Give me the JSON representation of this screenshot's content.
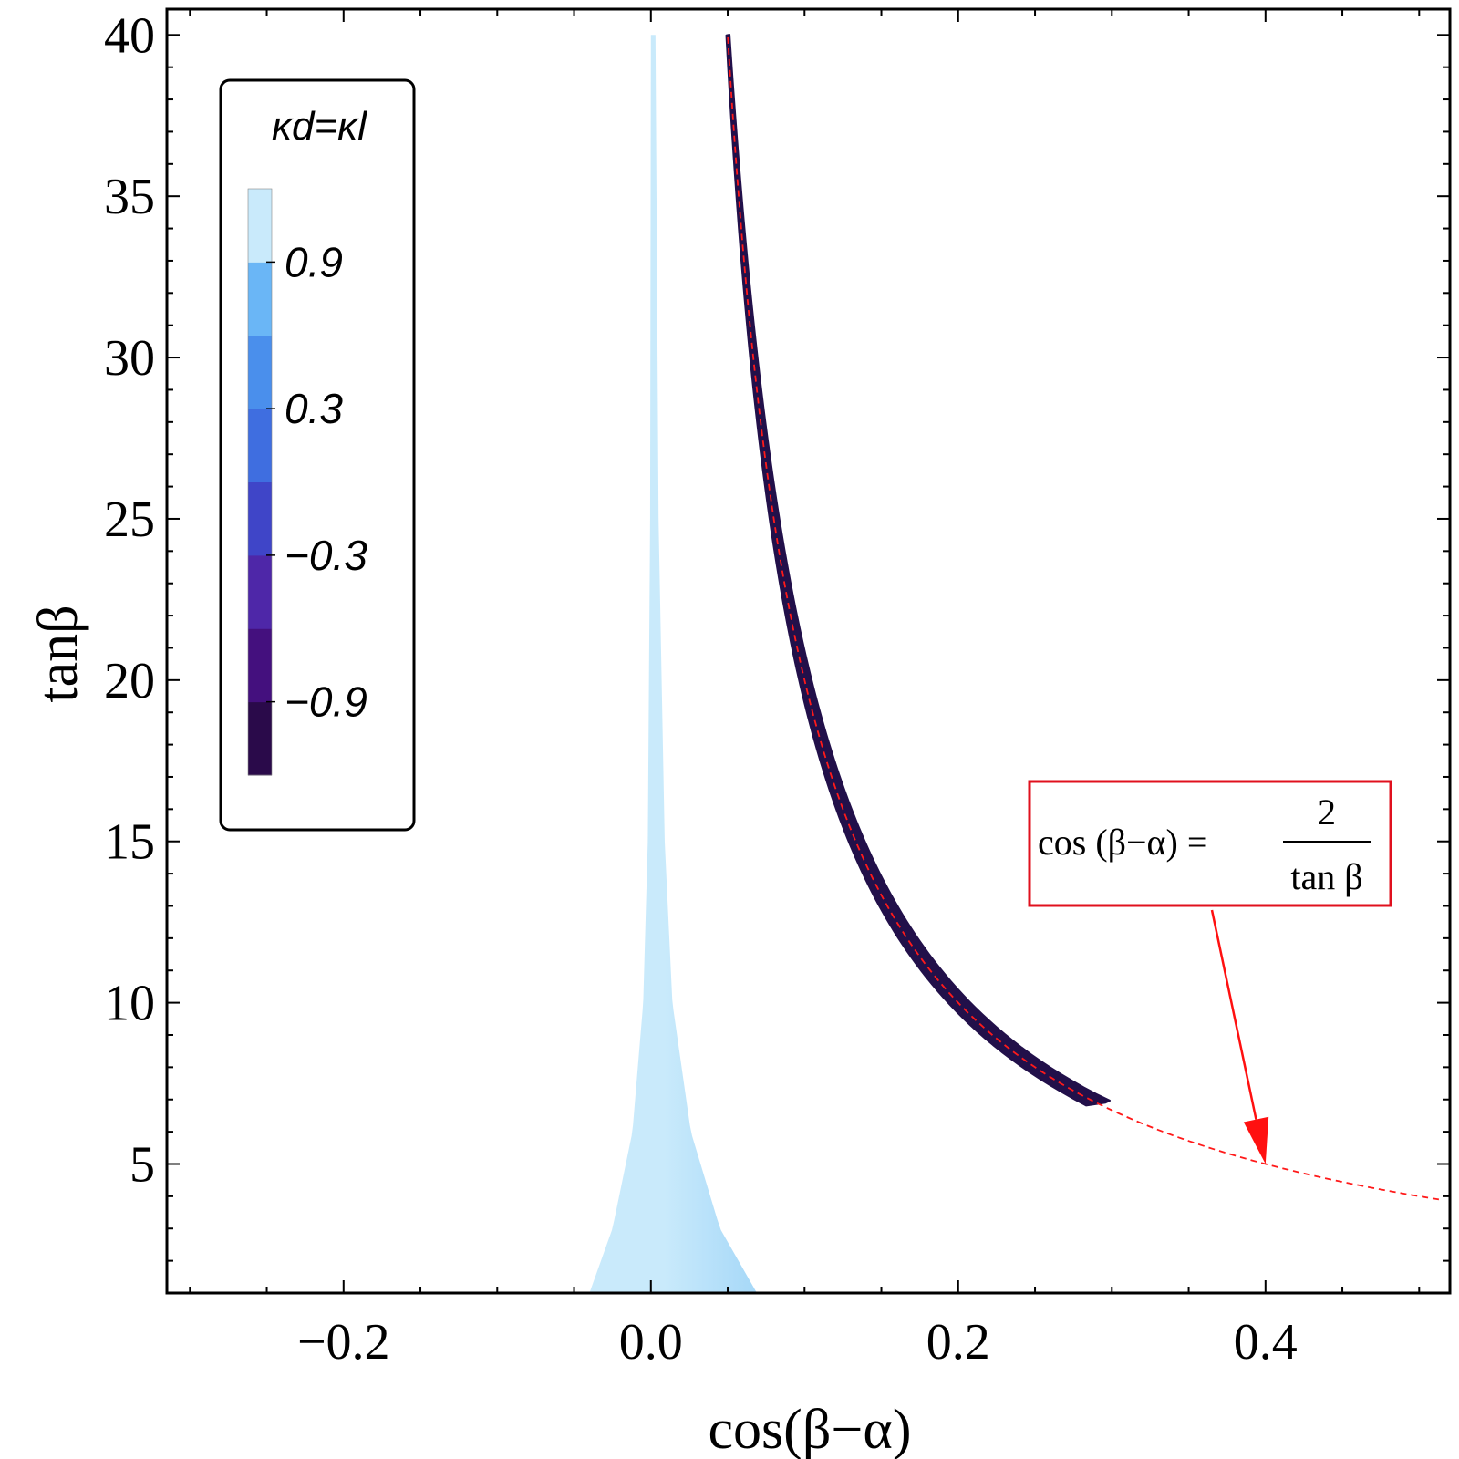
{
  "chart_data": {
    "type": "contour",
    "title": "",
    "xlabel": "cos(β−α)",
    "ylabel": "tanβ",
    "xlim": [
      -0.315,
      0.52
    ],
    "ylim": [
      1.0,
      40.8
    ],
    "xticks": [
      {
        "value": -0.2,
        "label": "−0.2"
      },
      {
        "value": 0.0,
        "label": "0.0"
      },
      {
        "value": 0.2,
        "label": "0.2"
      },
      {
        "value": 0.4,
        "label": "0.4"
      }
    ],
    "yticks": [
      {
        "value": 5,
        "label": "5"
      },
      {
        "value": 10,
        "label": "10"
      },
      {
        "value": 15,
        "label": "15"
      },
      {
        "value": 20,
        "label": "20"
      },
      {
        "value": 25,
        "label": "25"
      },
      {
        "value": 30,
        "label": "30"
      },
      {
        "value": 35,
        "label": "35"
      },
      {
        "value": 40,
        "label": "40"
      }
    ],
    "legend": {
      "title": "κd=κl",
      "placement": "top-left",
      "range": [
        -1.2,
        1.2
      ],
      "bands": [
        {
          "from": -1.2,
          "to": -0.9,
          "color": "#2a0a4a"
        },
        {
          "from": -0.9,
          "to": -0.6,
          "color": "#44107e"
        },
        {
          "from": -0.6,
          "to": -0.3,
          "color": "#4e27a8"
        },
        {
          "from": -0.3,
          "to": 0.0,
          "color": "#3f45c8"
        },
        {
          "from": 0.0,
          "to": 0.3,
          "color": "#3f6ee0"
        },
        {
          "from": 0.3,
          "to": 0.6,
          "color": "#4a8fec"
        },
        {
          "from": 0.6,
          "to": 0.9,
          "color": "#6ab6f6"
        },
        {
          "from": 0.9,
          "to": 1.2,
          "color": "#c9eafb"
        }
      ],
      "labels": [
        {
          "value": 0.9,
          "label": "0.9"
        },
        {
          "value": 0.3,
          "label": "0.3"
        },
        {
          "value": -0.3,
          "label": "−0.3"
        },
        {
          "value": -0.9,
          "label": "−0.9"
        }
      ]
    },
    "regions": [
      {
        "name": "alignment-region",
        "kappa": 1.0,
        "color": "#c9eafb",
        "color_right": "#a6d8f8",
        "left_boundary": [
          [
            -0.04,
            1.0
          ],
          [
            -0.025,
            3.0
          ],
          [
            -0.012,
            6.0
          ],
          [
            -0.005,
            10.0
          ],
          [
            -0.002,
            15.0
          ],
          [
            -0.0005,
            25.0
          ],
          [
            0.0,
            40.0
          ]
        ],
        "right_boundary": [
          [
            0.069,
            1.0
          ],
          [
            0.045,
            3.0
          ],
          [
            0.026,
            6.0
          ],
          [
            0.014,
            10.0
          ],
          [
            0.009,
            15.0
          ],
          [
            0.005,
            25.0
          ],
          [
            0.003,
            40.0
          ]
        ]
      },
      {
        "name": "wrong-sign-band",
        "kappa": -1.0,
        "color": "#22104a",
        "tanb_range": [
          6.9,
          40.0
        ],
        "half_width_at_min": 0.011,
        "half_width_at_max": 0.0015
      }
    ],
    "curve": {
      "name": "cos(β−α) = 2/tanβ",
      "function": "x = 2 / tanb",
      "tanb_range": [
        3.9,
        40.0
      ],
      "style": "dashed",
      "color": "#ff1a1a"
    },
    "annotation": {
      "lhs": "cos (β−α) =",
      "numerator": "2",
      "denominator": "tan β",
      "border_color": "#e0101e",
      "arrow_color": "#ff1010",
      "arrow_target": [
        0.4,
        5.0
      ]
    }
  }
}
